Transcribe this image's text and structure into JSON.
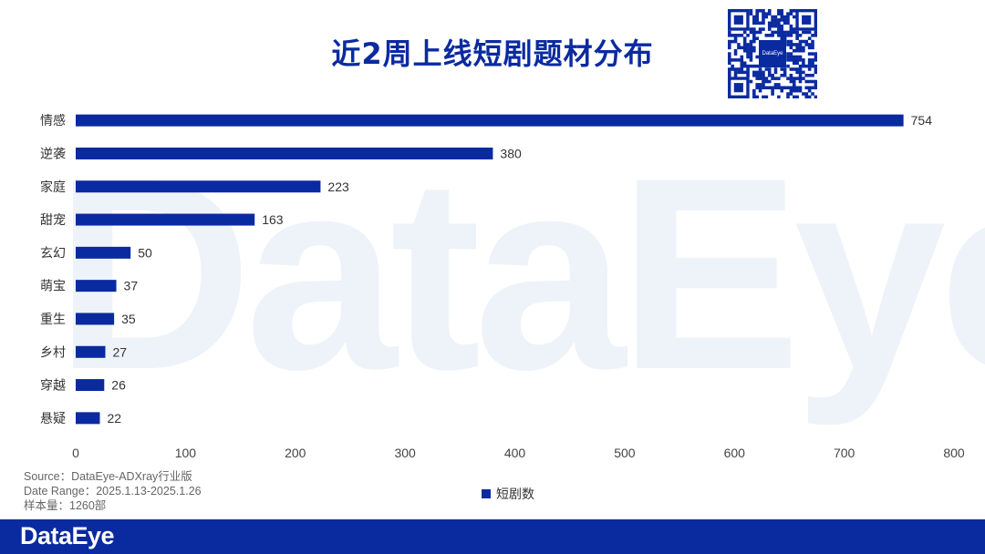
{
  "title": "近2周上线短剧题材分布",
  "watermark": "DataEye",
  "qr_logo": "DataEye",
  "chart_data": {
    "type": "bar",
    "orientation": "horizontal",
    "categories": [
      "情感",
      "逆袭",
      "家庭",
      "甜宠",
      "玄幻",
      "萌宝",
      "重生",
      "乡村",
      "穿越",
      "悬疑"
    ],
    "series": [
      {
        "name": "短剧数",
        "values": [
          754,
          380,
          223,
          163,
          50,
          37,
          35,
          27,
          26,
          22
        ]
      }
    ],
    "xlim": [
      0,
      800
    ],
    "xticks": [
      0,
      100,
      200,
      300,
      400,
      500,
      600,
      700,
      800
    ],
    "grid": false,
    "legend": "bottom",
    "colors": {
      "bar": "#0a2aa0"
    }
  },
  "footnote": {
    "source": "Source：DataEye-ADXray行业版",
    "date_range": "Date Range：2025.1.13-2025.1.26",
    "sample": "样本量：1260部"
  },
  "legend_label": "短剧数",
  "footer_brand": "DataEye"
}
